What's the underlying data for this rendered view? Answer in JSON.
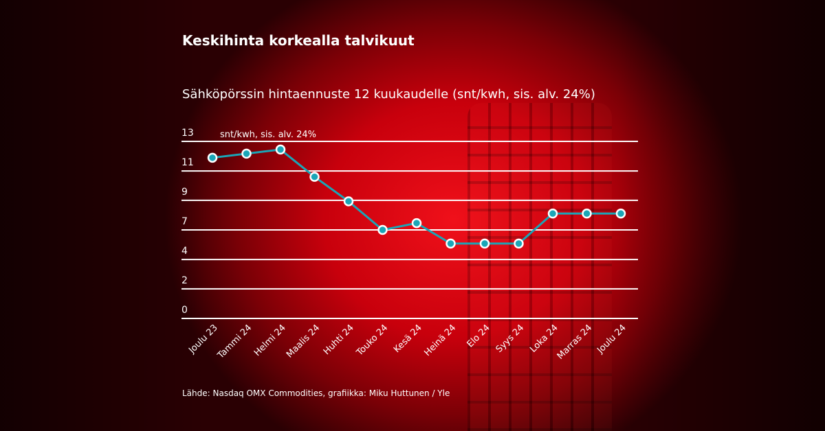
{
  "title": "Keskihinta korkealla talvikuut",
  "subtitle": "Sähköpörssin hintaennuste 12 kuukaudelle (snt/kwh, sis. alv. 24%)",
  "source": "Lähde: Nasdaq OMX Commodities, grafiikka: Miku Huttunen / Yle",
  "colors": {
    "line": "#1aa6b7",
    "marker_fill": "#1aa6b7",
    "marker_stroke": "#ffffff",
    "grid": "#ffffff",
    "background": "#c8000c"
  },
  "chart_data": {
    "type": "line",
    "title": "Keskihinta korkealla talvikuut",
    "ylabel": "snt/kwh, sis. alv. 24%",
    "categories": [
      "Joulu 23",
      "Tammi 24",
      "Helmi 24",
      "Maalis 24",
      "Huhti 24",
      "Touko 24",
      "Kesä 24",
      "Heinä 24",
      "Elo 24",
      "Syys 24",
      "Loka 24",
      "Marras 24",
      "Joulu 24"
    ],
    "values": [
      11.8,
      12.1,
      12.4,
      10.4,
      8.6,
      6.5,
      7.0,
      5.5,
      5.5,
      5.5,
      7.7,
      7.7,
      7.7
    ],
    "ylim": [
      0,
      13
    ],
    "yticks": [
      0,
      2.17,
      4.33,
      6.5,
      8.67,
      10.83,
      13
    ],
    "ytick_labels": [
      "0",
      "2",
      "4",
      "7",
      "9",
      "11",
      "13"
    ],
    "grid": true
  }
}
